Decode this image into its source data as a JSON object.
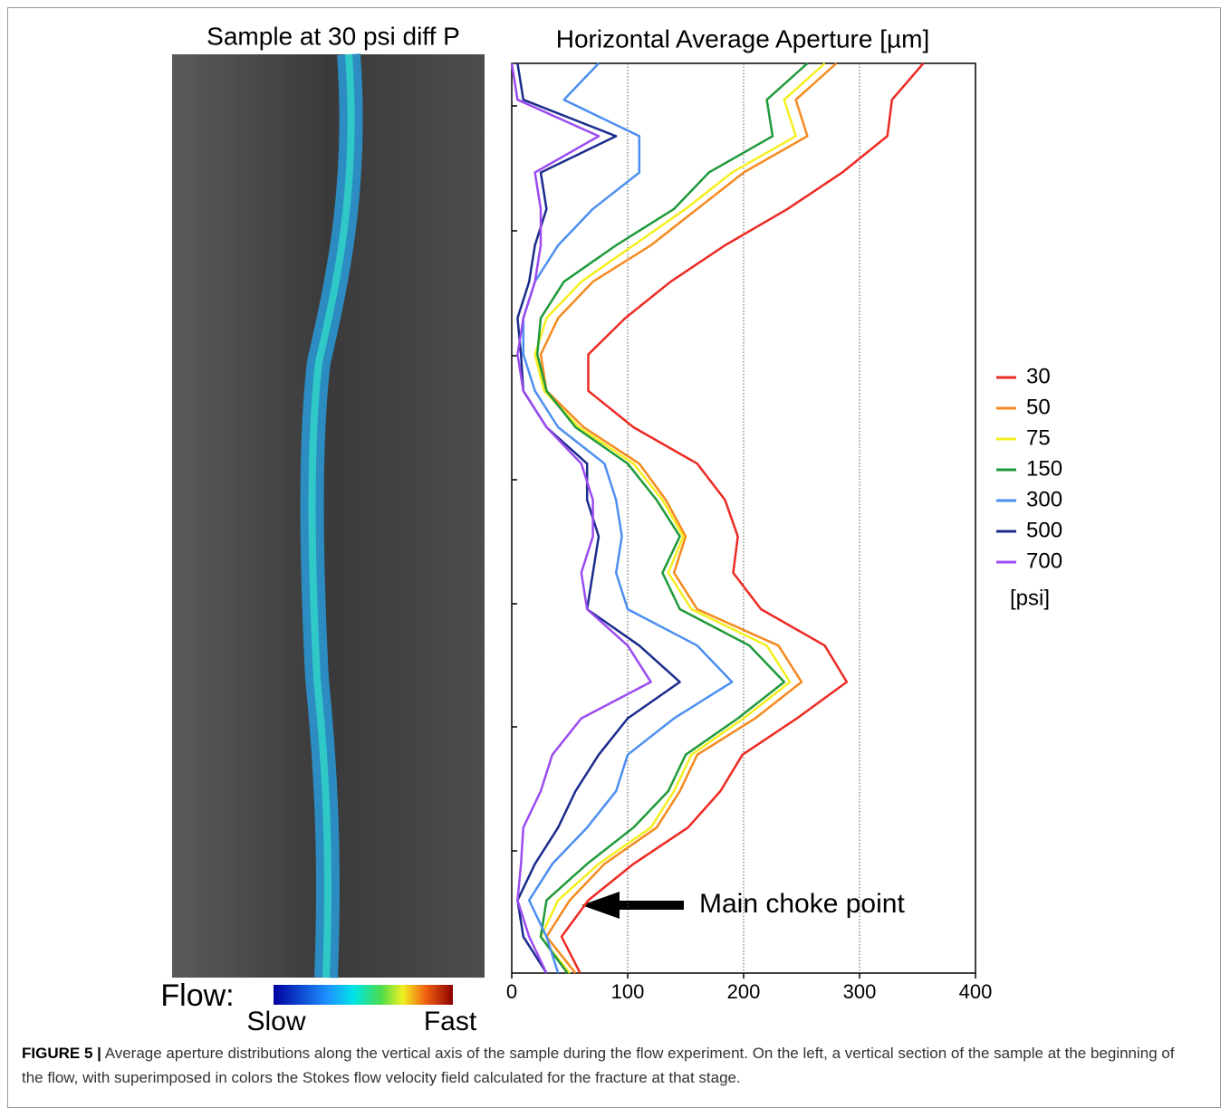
{
  "figure": {
    "image_title": "Sample at  30 psi diff P",
    "flow_label": "Flow:",
    "slow_label": "Slow",
    "fast_label": "Fast",
    "caption_label": "FIGURE 5 |",
    "caption_text": "Average aperture distributions along the vertical axis of the sample during the flow experiment. On the left, a vertical section of the sample at the beginning of the flow, with superimposed in colors the Stokes flow velocity field calculated for the fracture at that stage."
  },
  "chart_data": {
    "type": "line",
    "title": "Horizontal Average Aperture [µm]",
    "annotation": "Main choke point",
    "legend_unit": "[psi]",
    "xlim": [
      0,
      400
    ],
    "xticks": [
      0,
      100,
      200,
      300,
      400
    ],
    "grid": true,
    "series": [
      {
        "name": "30",
        "color": "#ee2a24",
        "values": [
          355,
          328,
          324,
          285,
          238,
          184,
          137,
          98,
          66,
          66,
          105,
          160,
          184,
          195,
          191,
          215,
          270,
          289,
          246,
          199,
          180,
          152,
          105,
          66,
          43,
          59
        ]
      },
      {
        "name": "50",
        "color": "#f58a1f",
        "values": [
          280,
          245,
          255,
          200,
          160,
          120,
          70,
          40,
          25,
          30,
          62,
          110,
          133,
          150,
          140,
          160,
          230,
          250,
          210,
          160,
          145,
          125,
          80,
          50,
          30,
          55
        ]
      },
      {
        "name": "75",
        "color": "#f4ef20",
        "values": [
          270,
          235,
          245,
          190,
          150,
          105,
          60,
          30,
          20,
          28,
          58,
          105,
          130,
          148,
          135,
          155,
          220,
          240,
          200,
          155,
          140,
          120,
          75,
          40,
          25,
          50
        ]
      },
      {
        "name": "150",
        "color": "#1f9a3a",
        "values": [
          255,
          220,
          225,
          170,
          140,
          90,
          45,
          25,
          22,
          30,
          55,
          100,
          125,
          145,
          130,
          145,
          205,
          235,
          195,
          150,
          135,
          105,
          65,
          30,
          25,
          48
        ]
      },
      {
        "name": "300",
        "color": "#4d8ff0",
        "values": [
          75,
          45,
          110,
          110,
          70,
          40,
          20,
          10,
          10,
          20,
          40,
          80,
          90,
          95,
          90,
          100,
          160,
          190,
          140,
          100,
          90,
          65,
          35,
          15,
          30,
          40
        ]
      },
      {
        "name": "500",
        "color": "#1b2b8c",
        "values": [
          5,
          10,
          90,
          25,
          30,
          20,
          15,
          5,
          8,
          10,
          30,
          65,
          65,
          75,
          70,
          65,
          110,
          145,
          100,
          75,
          55,
          40,
          20,
          5,
          10,
          30
        ]
      },
      {
        "name": "700",
        "color": "#9b4bf0",
        "values": [
          0,
          5,
          75,
          20,
          25,
          25,
          20,
          10,
          5,
          10,
          30,
          60,
          70,
          70,
          60,
          65,
          100,
          120,
          60,
          35,
          25,
          10,
          8,
          5,
          15,
          30
        ]
      }
    ]
  }
}
